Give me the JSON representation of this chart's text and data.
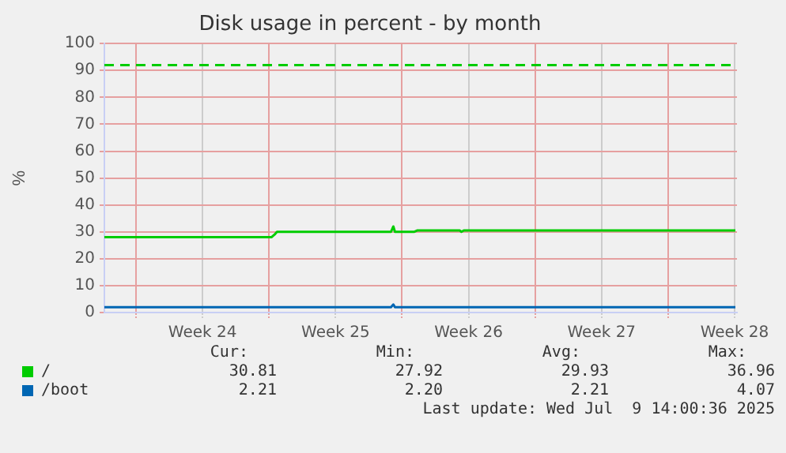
{
  "chart_data": {
    "type": "line",
    "title": "Disk usage in percent - by month",
    "ylabel": "%",
    "xlim": [
      "2025-06-07T08:00",
      "2025-07-10T15:00"
    ],
    "xticks": [
      {
        "value": "2025-06-09",
        "label": null
      },
      {
        "value": "2025-06-12T12:00",
        "label": "Week 24"
      },
      {
        "value": "2025-06-16",
        "label": null
      },
      {
        "value": "2025-06-19T12:00",
        "label": "Week 25"
      },
      {
        "value": "2025-06-23",
        "label": null
      },
      {
        "value": "2025-06-26T12:00",
        "label": "Week 26"
      },
      {
        "value": "2025-06-30",
        "label": null
      },
      {
        "value": "2025-07-03T12:00",
        "label": "Week 27"
      },
      {
        "value": "2025-07-07",
        "label": null
      },
      {
        "value": "2025-07-10T12:00",
        "label": "Week 28"
      }
    ],
    "ylim": [
      0,
      100
    ],
    "yticks": [
      0,
      10,
      20,
      30,
      40,
      50,
      60,
      70,
      80,
      90,
      100
    ],
    "grid": true,
    "legend": "bottom left",
    "marker": "none",
    "line_style": "solid",
    "series": [
      {
        "name": "/",
        "color": "#00cc00",
        "x": [
          "2025-06-07T08:00",
          "2025-06-16T03:00",
          "2025-06-16T07:00",
          "2025-06-16T10:00",
          "2025-06-22T10:00",
          "2025-06-22T13:00",
          "2025-06-22T15:00",
          "2025-06-23T15:00",
          "2025-06-23T19:00",
          "2025-06-26T01:00",
          "2025-06-26T03:00",
          "2025-06-26T06:00",
          "2025-07-10T13:00"
        ],
        "values": [
          28,
          28,
          29,
          30,
          30,
          32,
          30,
          30,
          30.5,
          30.5,
          30,
          30.5,
          30.5
        ]
      },
      {
        "name": "/boot",
        "color": "#0066b3",
        "x": [
          "2025-06-07T08:00",
          "2025-06-22T10:00",
          "2025-06-22T13:00",
          "2025-06-22T15:00",
          "2025-07-10T13:00"
        ],
        "values": [
          2,
          2,
          3,
          2,
          2
        ]
      }
    ],
    "ref_lines": [
      {
        "axis": "y",
        "value": 92,
        "color": "#00cc00",
        "line_style": "dashed"
      }
    ],
    "annotations": [
      "Cur:",
      "Min:",
      "Avg:",
      "Max:",
      "30.81",
      "27.92",
      "29.93",
      "36.96",
      "2.21",
      "2.20",
      "2.21",
      "4.07",
      "Last update: Wed Jul  9 14:00:36 2025"
    ]
  }
}
